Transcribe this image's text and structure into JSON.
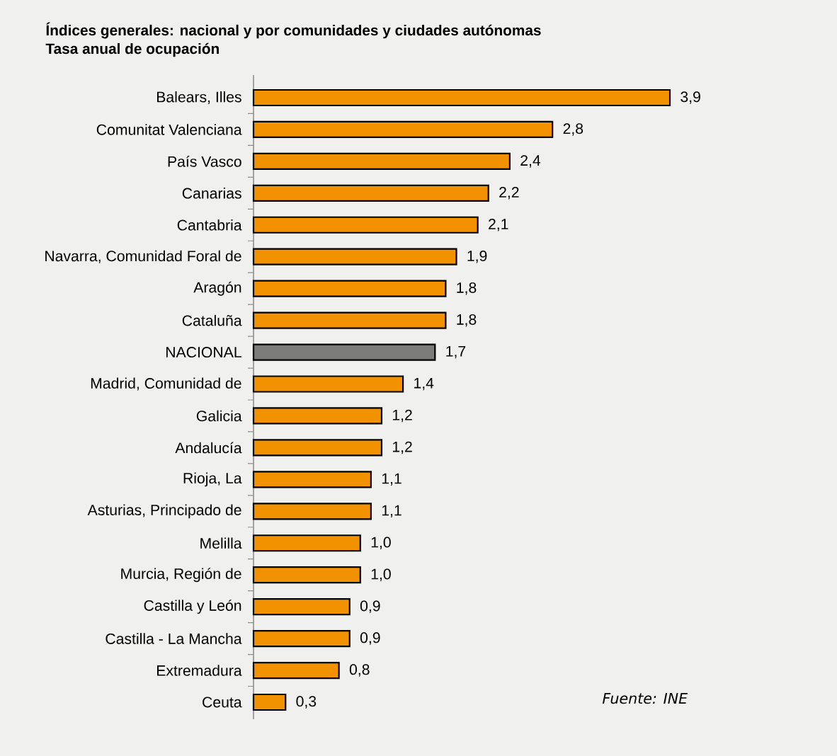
{
  "chart_data": {
    "type": "bar",
    "orientation": "horizontal",
    "title": "Índices generales: nacional y por comunidades y ciudades autónomas",
    "subtitle": "Tasa anual de ocupación",
    "categories": [
      "Balears, Illes",
      "Comunitat Valenciana",
      "País Vasco",
      "Canarias",
      "Cantabria",
      "Navarra, Comunidad Foral de",
      "Aragón",
      "Cataluña",
      "NACIONAL",
      "Madrid, Comunidad de",
      "Galicia",
      "Andalucía",
      "Rioja, La",
      "Asturias, Principado de",
      "Melilla",
      "Murcia, Región de",
      "Castilla y León",
      "Castilla - La Mancha",
      "Extremadura",
      "Ceuta"
    ],
    "values": [
      3.9,
      2.8,
      2.4,
      2.2,
      2.1,
      1.9,
      1.8,
      1.8,
      1.7,
      1.4,
      1.2,
      1.2,
      1.1,
      1.1,
      1.0,
      1.0,
      0.9,
      0.9,
      0.8,
      0.3
    ],
    "colors": [
      "#f39200",
      "#f39200",
      "#f39200",
      "#f39200",
      "#f39200",
      "#f39200",
      "#f39200",
      "#f39200",
      "#7b7b79",
      "#f39200",
      "#f39200",
      "#f39200",
      "#f39200",
      "#f39200",
      "#f39200",
      "#f39200",
      "#f39200",
      "#f39200",
      "#f39200",
      "#f39200"
    ],
    "value_labels": [
      "3,9",
      "2,8",
      "2,4",
      "2,2",
      "2,1",
      "1,9",
      "1,8",
      "1,8",
      "1,7",
      "1,4",
      "1,2",
      "1,2",
      "1,1",
      "1,1",
      "1,0",
      "1,0",
      "0,9",
      "0,9",
      "0,8",
      "0,3"
    ],
    "tick_labels": "y",
    "annotations": [
      "Fuente: INE"
    ]
  }
}
